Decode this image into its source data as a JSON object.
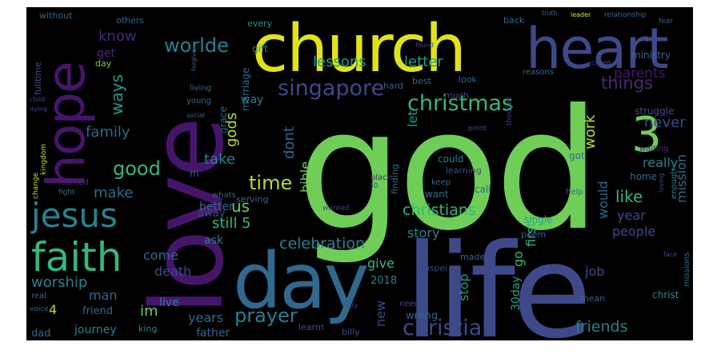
{
  "palette": {
    "background": "#000000",
    "purple": "#45156b",
    "deep_purple": "#482878",
    "indigo": "#3e4989",
    "blue": "#31688e",
    "teal": "#26828e",
    "green_teal": "#1f9e89",
    "green": "#35b779",
    "light_green": "#6ece58",
    "lime": "#b5de2b",
    "yellow": "#e0e31a"
  },
  "words": [
    {
      "text": "god",
      "color": "#6ece58"
    },
    {
      "text": "life",
      "color": "#3e4989"
    },
    {
      "text": "love",
      "color": "#45156b"
    },
    {
      "text": "church",
      "color": "#e0e31a"
    },
    {
      "text": "heart",
      "color": "#3e4989"
    },
    {
      "text": "day",
      "color": "#31688e"
    },
    {
      "text": "hope",
      "color": "#45156b"
    },
    {
      "text": "faith",
      "color": "#35b779"
    },
    {
      "text": "jesus",
      "color": "#26828e"
    },
    {
      "text": "3",
      "color": "#6ece58"
    },
    {
      "text": "christmas",
      "color": "#35b779"
    },
    {
      "text": "singapore",
      "color": "#3e4989"
    },
    {
      "text": "worlde",
      "color": "#26828e"
    },
    {
      "text": "christian",
      "color": "#3e4989"
    },
    {
      "text": "prayer",
      "color": "#26828e"
    },
    {
      "text": "christians",
      "color": "#35b779"
    },
    {
      "text": "celebration",
      "color": "#26828e"
    },
    {
      "text": "good",
      "color": "#35b779"
    },
    {
      "text": "time",
      "color": "#b5de2b"
    },
    {
      "text": "things",
      "color": "#482878"
    },
    {
      "text": "like",
      "color": "#35b779"
    },
    {
      "text": "friends",
      "color": "#26828e"
    },
    {
      "text": "lessons",
      "color": "#1f9e89"
    },
    {
      "text": "letter",
      "color": "#1f9e89"
    },
    {
      "text": "parents",
      "color": "#45156b"
    },
    {
      "text": "worship",
      "color": "#26828e"
    },
    {
      "text": "family",
      "color": "#31688e"
    },
    {
      "text": "know",
      "color": "#482878"
    },
    {
      "text": "ways",
      "color": "#1f9e89"
    },
    {
      "text": "gods",
      "color": "#b5de2b"
    },
    {
      "text": "dont",
      "color": "#31688e"
    },
    {
      "text": "work",
      "color": "#b5de2b"
    },
    {
      "text": "would",
      "color": "#31688e"
    },
    {
      "text": "mission",
      "color": "#31688e"
    },
    {
      "text": "really",
      "color": "#26828e"
    },
    {
      "text": "never",
      "color": "#3e4989"
    },
    {
      "text": "take",
      "color": "#26828e"
    },
    {
      "text": "make",
      "color": "#31688e"
    },
    {
      "text": "still 5",
      "color": "#35b779"
    },
    {
      "text": "us",
      "color": "#6ece58"
    },
    {
      "text": "bible",
      "color": "#6ece58"
    },
    {
      "text": "let",
      "color": "#1f9e89"
    },
    {
      "text": "get",
      "color": "#482878"
    },
    {
      "text": "way",
      "color": "#26828e"
    },
    {
      "text": "year",
      "color": "#3e4989"
    },
    {
      "text": "people",
      "color": "#3e4989"
    },
    {
      "text": "story",
      "color": "#26828e"
    },
    {
      "text": "stop",
      "color": "#1f9e89"
    },
    {
      "text": "give",
      "color": "#35b779"
    },
    {
      "text": "come",
      "color": "#31688e"
    },
    {
      "text": "ask",
      "color": "#26828e"
    },
    {
      "text": "death",
      "color": "#3e4989"
    },
    {
      "text": "years",
      "color": "#31688e"
    },
    {
      "text": "man",
      "color": "#31688e"
    },
    {
      "text": "im",
      "color": "#6ece58"
    },
    {
      "text": "live",
      "color": "#26828e"
    },
    {
      "text": "father",
      "color": "#31688e"
    },
    {
      "text": "journey",
      "color": "#26828e"
    },
    {
      "text": "job",
      "color": "#3e4989"
    },
    {
      "text": "go",
      "color": "#35b779"
    },
    {
      "text": "first",
      "color": "#35b779"
    },
    {
      "text": "30day",
      "color": "#1f9e89"
    },
    {
      "text": "new",
      "color": "#3e4989"
    },
    {
      "text": "2018",
      "color": "#26828e"
    },
    {
      "text": "wrong",
      "color": "#31688e"
    },
    {
      "text": "friend",
      "color": "#31688e"
    },
    {
      "text": "king",
      "color": "#26828e"
    },
    {
      "text": "dad",
      "color": "#31688e"
    },
    {
      "text": "4",
      "color": "#b5de2b"
    },
    {
      "text": "better",
      "color": "#31688e"
    },
    {
      "text": "away",
      "color": "#3e4989"
    },
    {
      "text": "grace",
      "color": "#31688e"
    },
    {
      "text": "marriage",
      "color": "#31688e"
    },
    {
      "text": "gift",
      "color": "#26828e"
    },
    {
      "text": "every",
      "color": "#1f9e89"
    },
    {
      "text": "without",
      "color": "#31688e"
    },
    {
      "text": "others",
      "color": "#31688e"
    },
    {
      "text": "fulltime",
      "color": "#3e4989"
    },
    {
      "text": "ministry",
      "color": "#31688e"
    },
    {
      "text": "struggle",
      "color": "#3e4989"
    },
    {
      "text": "home",
      "color": "#31688e"
    },
    {
      "text": "single",
      "color": "#1f9e89"
    },
    {
      "text": "poem",
      "color": "#31688e"
    },
    {
      "text": "gospel",
      "color": "#3e4989"
    },
    {
      "text": "made",
      "color": "#31688e"
    },
    {
      "text": "call",
      "color": "#31688e"
    },
    {
      "text": "want",
      "color": "#31688e"
    },
    {
      "text": "could",
      "color": "#26828e"
    },
    {
      "text": "finding",
      "color": "#31688e"
    },
    {
      "text": "learning",
      "color": "#3e4989"
    },
    {
      "text": "best",
      "color": "#31688e"
    },
    {
      "text": "hard",
      "color": "#31688e"
    },
    {
      "text": "look",
      "color": "#31688e"
    },
    {
      "text": "much",
      "color": "#3e4989"
    },
    {
      "text": "christ",
      "color": "#26828e"
    },
    {
      "text": "missions",
      "color": "#31688e"
    },
    {
      "text": "learnt",
      "color": "#3e4989"
    },
    {
      "text": "billy",
      "color": "#3e4989"
    },
    {
      "text": "serving",
      "color": "#31688e"
    },
    {
      "text": "whats",
      "color": "#31688e"
    },
    {
      "text": "got",
      "color": "#31688e"
    },
    {
      "text": "help",
      "color": "#31688e"
    },
    {
      "text": "young",
      "color": "#31688e"
    },
    {
      "text": "living",
      "color": "#31688e"
    },
    {
      "text": "change",
      "color": "#b5de2b"
    },
    {
      "text": "kingdom",
      "color": "#b5de2b"
    },
    {
      "text": "learned",
      "color": "#482878"
    },
    {
      "text": "fight",
      "color": "#31688e"
    },
    {
      "text": "m",
      "color": "#31688e"
    },
    {
      "text": "back",
      "color": "#31688e"
    },
    {
      "text": "relationship",
      "color": "#31688e"
    },
    {
      "text": "leader",
      "color": "#e0e31a"
    },
    {
      "text": "truth",
      "color": "#31688e"
    },
    {
      "text": "found",
      "color": "#3e4989"
    },
    {
      "text": "waiting",
      "color": "#482878"
    },
    {
      "text": "enough",
      "color": "#26828e"
    },
    {
      "text": "place",
      "color": "#482878"
    },
    {
      "text": "keep",
      "color": "#31688e"
    },
    {
      "text": "need",
      "color": "#3e4989"
    },
    {
      "text": "wanted",
      "color": "#3e4989"
    },
    {
      "text": "mean",
      "color": "#31688e"
    },
    {
      "text": "real",
      "color": "#31688e"
    },
    {
      "text": "voice",
      "color": "#31688e"
    },
    {
      "text": "day",
      "color": "#6ece58"
    },
    {
      "text": "reasons",
      "color": "#31688e"
    },
    {
      "text": "thought",
      "color": "#3e4989"
    },
    {
      "text": "point",
      "color": "#3e4989"
    },
    {
      "text": "called",
      "color": "#3e4989"
    },
    {
      "text": "fear",
      "color": "#31688e"
    },
    {
      "text": "dying",
      "color": "#3e4989"
    },
    {
      "text": "child",
      "color": "#3e4989"
    },
    {
      "text": "city",
      "color": "#3e4989"
    },
    {
      "text": "face",
      "color": "#3e4989"
    },
    {
      "text": "30",
      "color": "#3e4989"
    },
    {
      "text": "social",
      "color": "#31688e"
    },
    {
      "text": "loving",
      "color": "#3e4989"
    },
    {
      "text": "forgive",
      "color": "#31688e"
    }
  ]
}
